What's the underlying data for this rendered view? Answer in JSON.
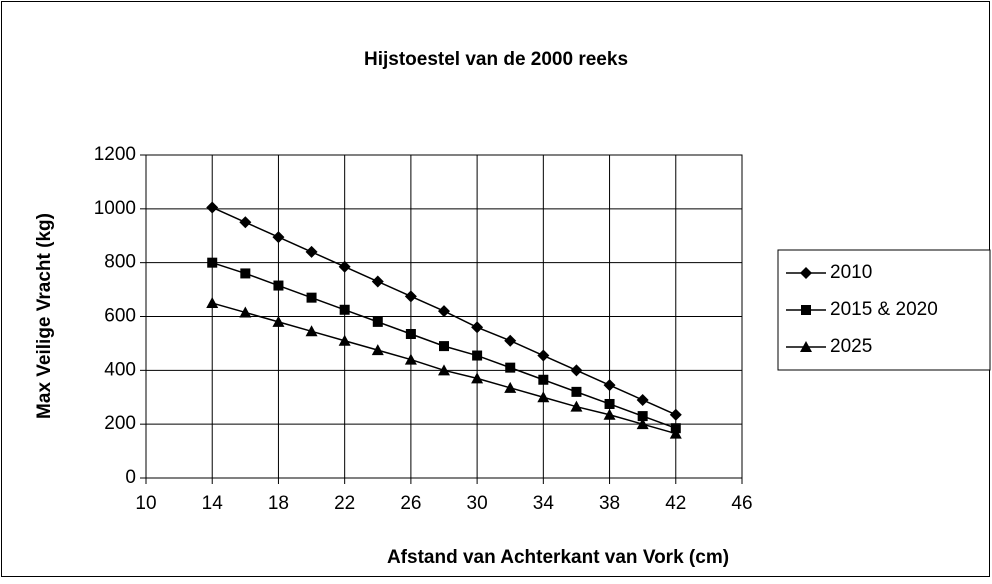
{
  "chart_data": {
    "type": "line",
    "title": "Hijstoestel van de 2000 reeks",
    "x_label": "Afstand van Achterkant van Vork (cm)",
    "y_label": "Max Veilige Vracht (kg)",
    "x": [
      14,
      16,
      18,
      20,
      22,
      24,
      26,
      28,
      30,
      32,
      34,
      36,
      38,
      40,
      42
    ],
    "series": [
      {
        "name": "2010",
        "color": "#000000",
        "marker": "diamond",
        "values": [
          1005,
          950,
          895,
          840,
          785,
          730,
          675,
          620,
          560,
          510,
          455,
          400,
          345,
          290,
          235
        ]
      },
      {
        "name": "2015 & 2020",
        "color": "#000000",
        "marker": "square",
        "values": [
          800,
          760,
          715,
          670,
          625,
          580,
          535,
          490,
          455,
          410,
          365,
          320,
          275,
          230,
          185
        ]
      },
      {
        "name": "2025",
        "color": "#000000",
        "marker": "triangle",
        "values": [
          650,
          615,
          580,
          545,
          510,
          475,
          440,
          400,
          370,
          335,
          300,
          265,
          235,
          200,
          165
        ]
      }
    ],
    "xlim": [
      10,
      46
    ],
    "xticks": [
      10,
      14,
      18,
      22,
      26,
      30,
      34,
      38,
      42,
      46
    ],
    "ylim": [
      0,
      1200
    ],
    "yticks": [
      0,
      200,
      400,
      600,
      800,
      1000,
      1200
    ],
    "grid": true,
    "legend": "right"
  }
}
